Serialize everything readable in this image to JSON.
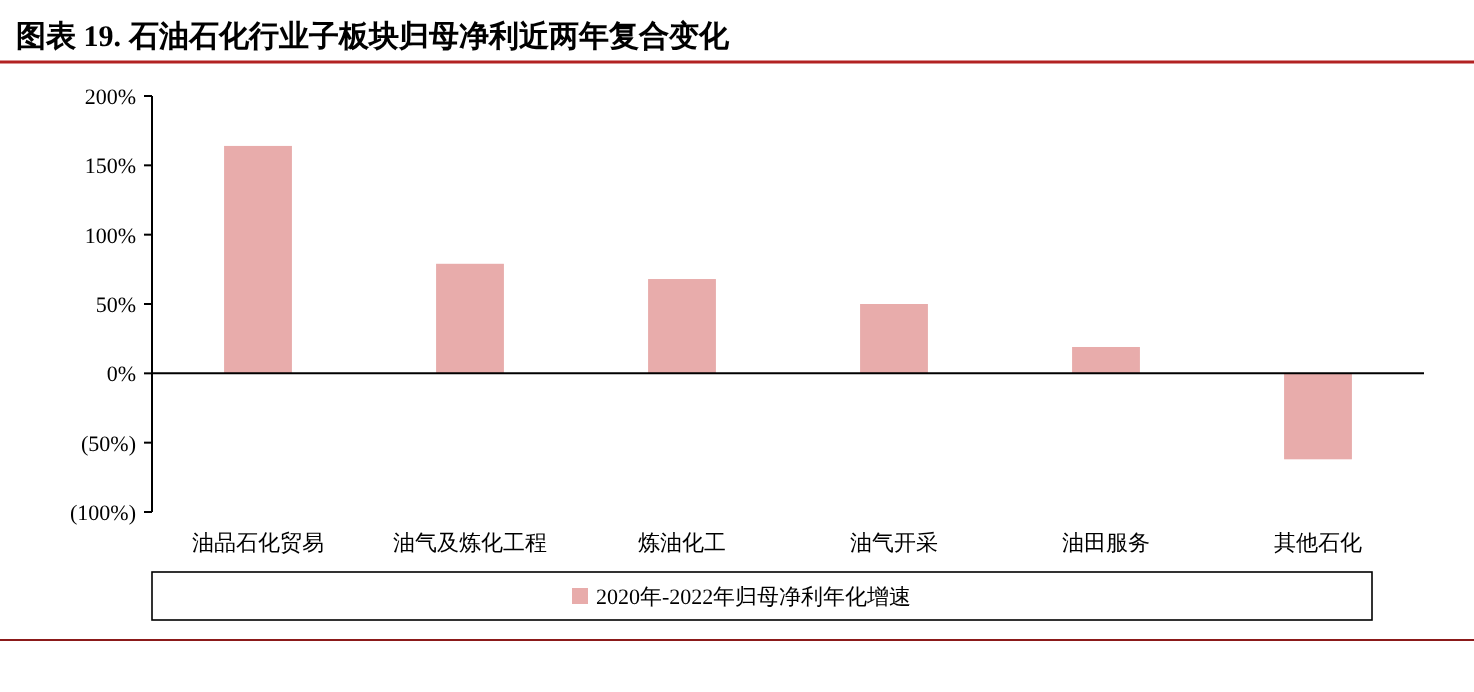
{
  "chart_data": {
    "type": "bar",
    "title": "图表 19. 石油石化行业子板块归母净利近两年复合变化",
    "categories": [
      "油品石化贸易",
      "油气及炼化工程",
      "炼油化工",
      "油气开采",
      "油田服务",
      "其他石化"
    ],
    "series": [
      {
        "name": "2020年-2022年归母净利年化增速",
        "color": "#e8acab",
        "values": [
          164,
          79,
          68,
          50,
          19,
          -62
        ]
      }
    ],
    "ylim": [
      -100,
      200
    ],
    "yticks": [
      {
        "value": -100,
        "label": "(100%)"
      },
      {
        "value": -50,
        "label": "(50%)"
      },
      {
        "value": 0,
        "label": "0%"
      },
      {
        "value": 50,
        "label": "50%"
      },
      {
        "value": 100,
        "label": "100%"
      },
      {
        "value": 150,
        "label": "150%"
      },
      {
        "value": 200,
        "label": "200%"
      }
    ],
    "legend": "bottom"
  }
}
